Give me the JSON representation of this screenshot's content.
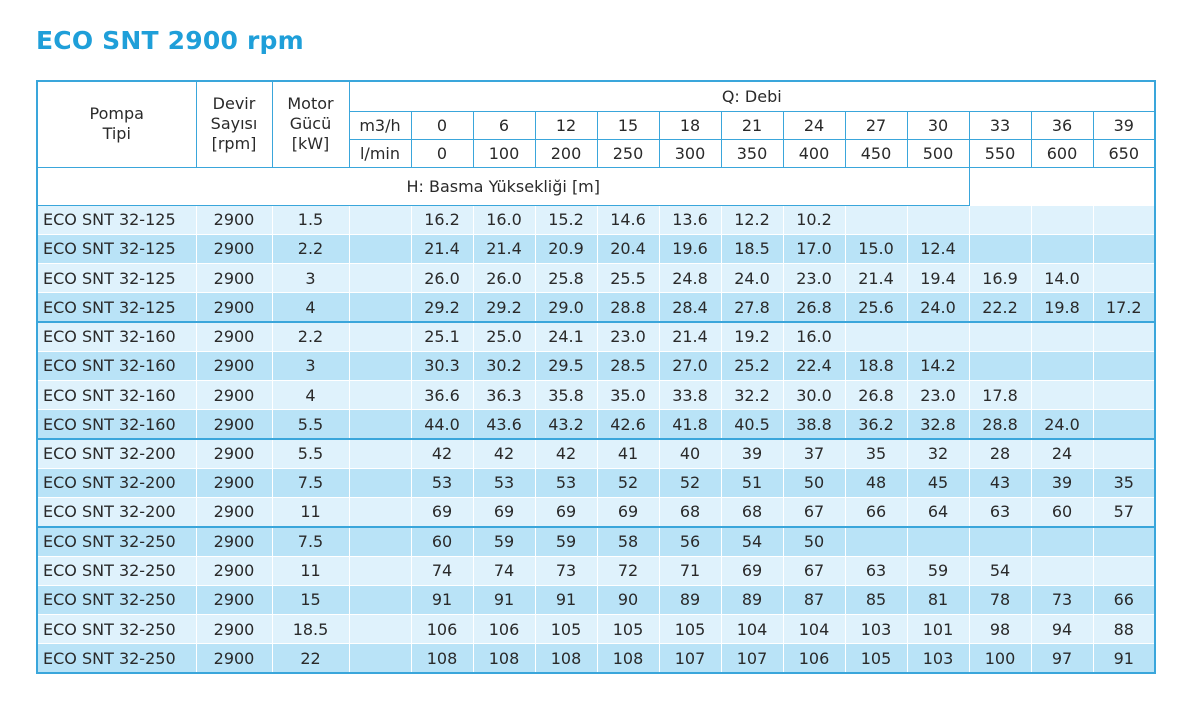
{
  "title": "ECO SNT 2900 rpm",
  "header": {
    "pompa_tipi_line1": "Pompa",
    "pompa_tipi_line2": "Tipi",
    "devir_line1": "Devir",
    "devir_line2": "Sayısı",
    "devir_unit": "[rpm]",
    "motor_line1": "Motor",
    "motor_line2": "Gücü",
    "motor_unit": "[kW]",
    "q_title": "Q: Debi",
    "h_title": "H: Basma Yüksekliği [m]",
    "unit_m3h": "m3/h",
    "unit_lmin": "l/min",
    "flow_m3h": [
      "0",
      "6",
      "12",
      "15",
      "18",
      "21",
      "24",
      "27",
      "30",
      "33",
      "36",
      "39"
    ],
    "flow_lmin": [
      "0",
      "100",
      "200",
      "250",
      "300",
      "350",
      "400",
      "450",
      "500",
      "550",
      "600",
      "650"
    ]
  },
  "rows": [
    {
      "type": "ECO SNT 32-125",
      "rpm": "2900",
      "kw": "1.5",
      "h": [
        "16.2",
        "16.0",
        "15.2",
        "14.6",
        "13.6",
        "12.2",
        "10.2",
        "",
        "",
        "",
        "",
        ""
      ]
    },
    {
      "type": "ECO SNT 32-125",
      "rpm": "2900",
      "kw": "2.2",
      "h": [
        "21.4",
        "21.4",
        "20.9",
        "20.4",
        "19.6",
        "18.5",
        "17.0",
        "15.0",
        "12.4",
        "",
        "",
        ""
      ]
    },
    {
      "type": "ECO SNT 32-125",
      "rpm": "2900",
      "kw": "3",
      "h": [
        "26.0",
        "26.0",
        "25.8",
        "25.5",
        "24.8",
        "24.0",
        "23.0",
        "21.4",
        "19.4",
        "16.9",
        "14.0",
        ""
      ]
    },
    {
      "type": "ECO SNT 32-125",
      "rpm": "2900",
      "kw": "4",
      "h": [
        "29.2",
        "29.2",
        "29.0",
        "28.8",
        "28.4",
        "27.8",
        "26.8",
        "25.6",
        "24.0",
        "22.2",
        "19.8",
        "17.2"
      ]
    },
    {
      "type": "ECO SNT 32-160",
      "rpm": "2900",
      "kw": "2.2",
      "h": [
        "25.1",
        "25.0",
        "24.1",
        "23.0",
        "21.4",
        "19.2",
        "16.0",
        "",
        "",
        "",
        "",
        ""
      ]
    },
    {
      "type": "ECO SNT 32-160",
      "rpm": "2900",
      "kw": "3",
      "h": [
        "30.3",
        "30.2",
        "29.5",
        "28.5",
        "27.0",
        "25.2",
        "22.4",
        "18.8",
        "14.2",
        "",
        "",
        ""
      ]
    },
    {
      "type": "ECO SNT 32-160",
      "rpm": "2900",
      "kw": "4",
      "h": [
        "36.6",
        "36.3",
        "35.8",
        "35.0",
        "33.8",
        "32.2",
        "30.0",
        "26.8",
        "23.0",
        "17.8",
        "",
        ""
      ]
    },
    {
      "type": "ECO SNT 32-160",
      "rpm": "2900",
      "kw": "5.5",
      "h": [
        "44.0",
        "43.6",
        "43.2",
        "42.6",
        "41.8",
        "40.5",
        "38.8",
        "36.2",
        "32.8",
        "28.8",
        "24.0",
        ""
      ]
    },
    {
      "type": "ECO SNT 32-200",
      "rpm": "2900",
      "kw": "5.5",
      "h": [
        "42",
        "42",
        "42",
        "41",
        "40",
        "39",
        "37",
        "35",
        "32",
        "28",
        "24",
        ""
      ]
    },
    {
      "type": "ECO SNT 32-200",
      "rpm": "2900",
      "kw": "7.5",
      "h": [
        "53",
        "53",
        "53",
        "52",
        "52",
        "51",
        "50",
        "48",
        "45",
        "43",
        "39",
        "35"
      ]
    },
    {
      "type": "ECO SNT 32-200",
      "rpm": "2900",
      "kw": "11",
      "h": [
        "69",
        "69",
        "69",
        "69",
        "68",
        "68",
        "67",
        "66",
        "64",
        "63",
        "60",
        "57"
      ]
    },
    {
      "type": "ECO SNT 32-250",
      "rpm": "2900",
      "kw": "7.5",
      "h": [
        "60",
        "59",
        "59",
        "58",
        "56",
        "54",
        "50",
        "",
        "",
        "",
        "",
        ""
      ]
    },
    {
      "type": "ECO SNT 32-250",
      "rpm": "2900",
      "kw": "11",
      "h": [
        "74",
        "74",
        "73",
        "72",
        "71",
        "69",
        "67",
        "63",
        "59",
        "54",
        "",
        ""
      ]
    },
    {
      "type": "ECO SNT 32-250",
      "rpm": "2900",
      "kw": "15",
      "h": [
        "91",
        "91",
        "91",
        "90",
        "89",
        "89",
        "87",
        "85",
        "81",
        "78",
        "73",
        "66"
      ]
    },
    {
      "type": "ECO SNT 32-250",
      "rpm": "2900",
      "kw": "18.5",
      "h": [
        "106",
        "106",
        "105",
        "105",
        "105",
        "104",
        "104",
        "103",
        "101",
        "98",
        "94",
        "88"
      ]
    },
    {
      "type": "ECO SNT 32-250",
      "rpm": "2900",
      "kw": "22",
      "h": [
        "108",
        "108",
        "108",
        "108",
        "107",
        "107",
        "106",
        "105",
        "103",
        "100",
        "97",
        "91"
      ]
    }
  ]
}
